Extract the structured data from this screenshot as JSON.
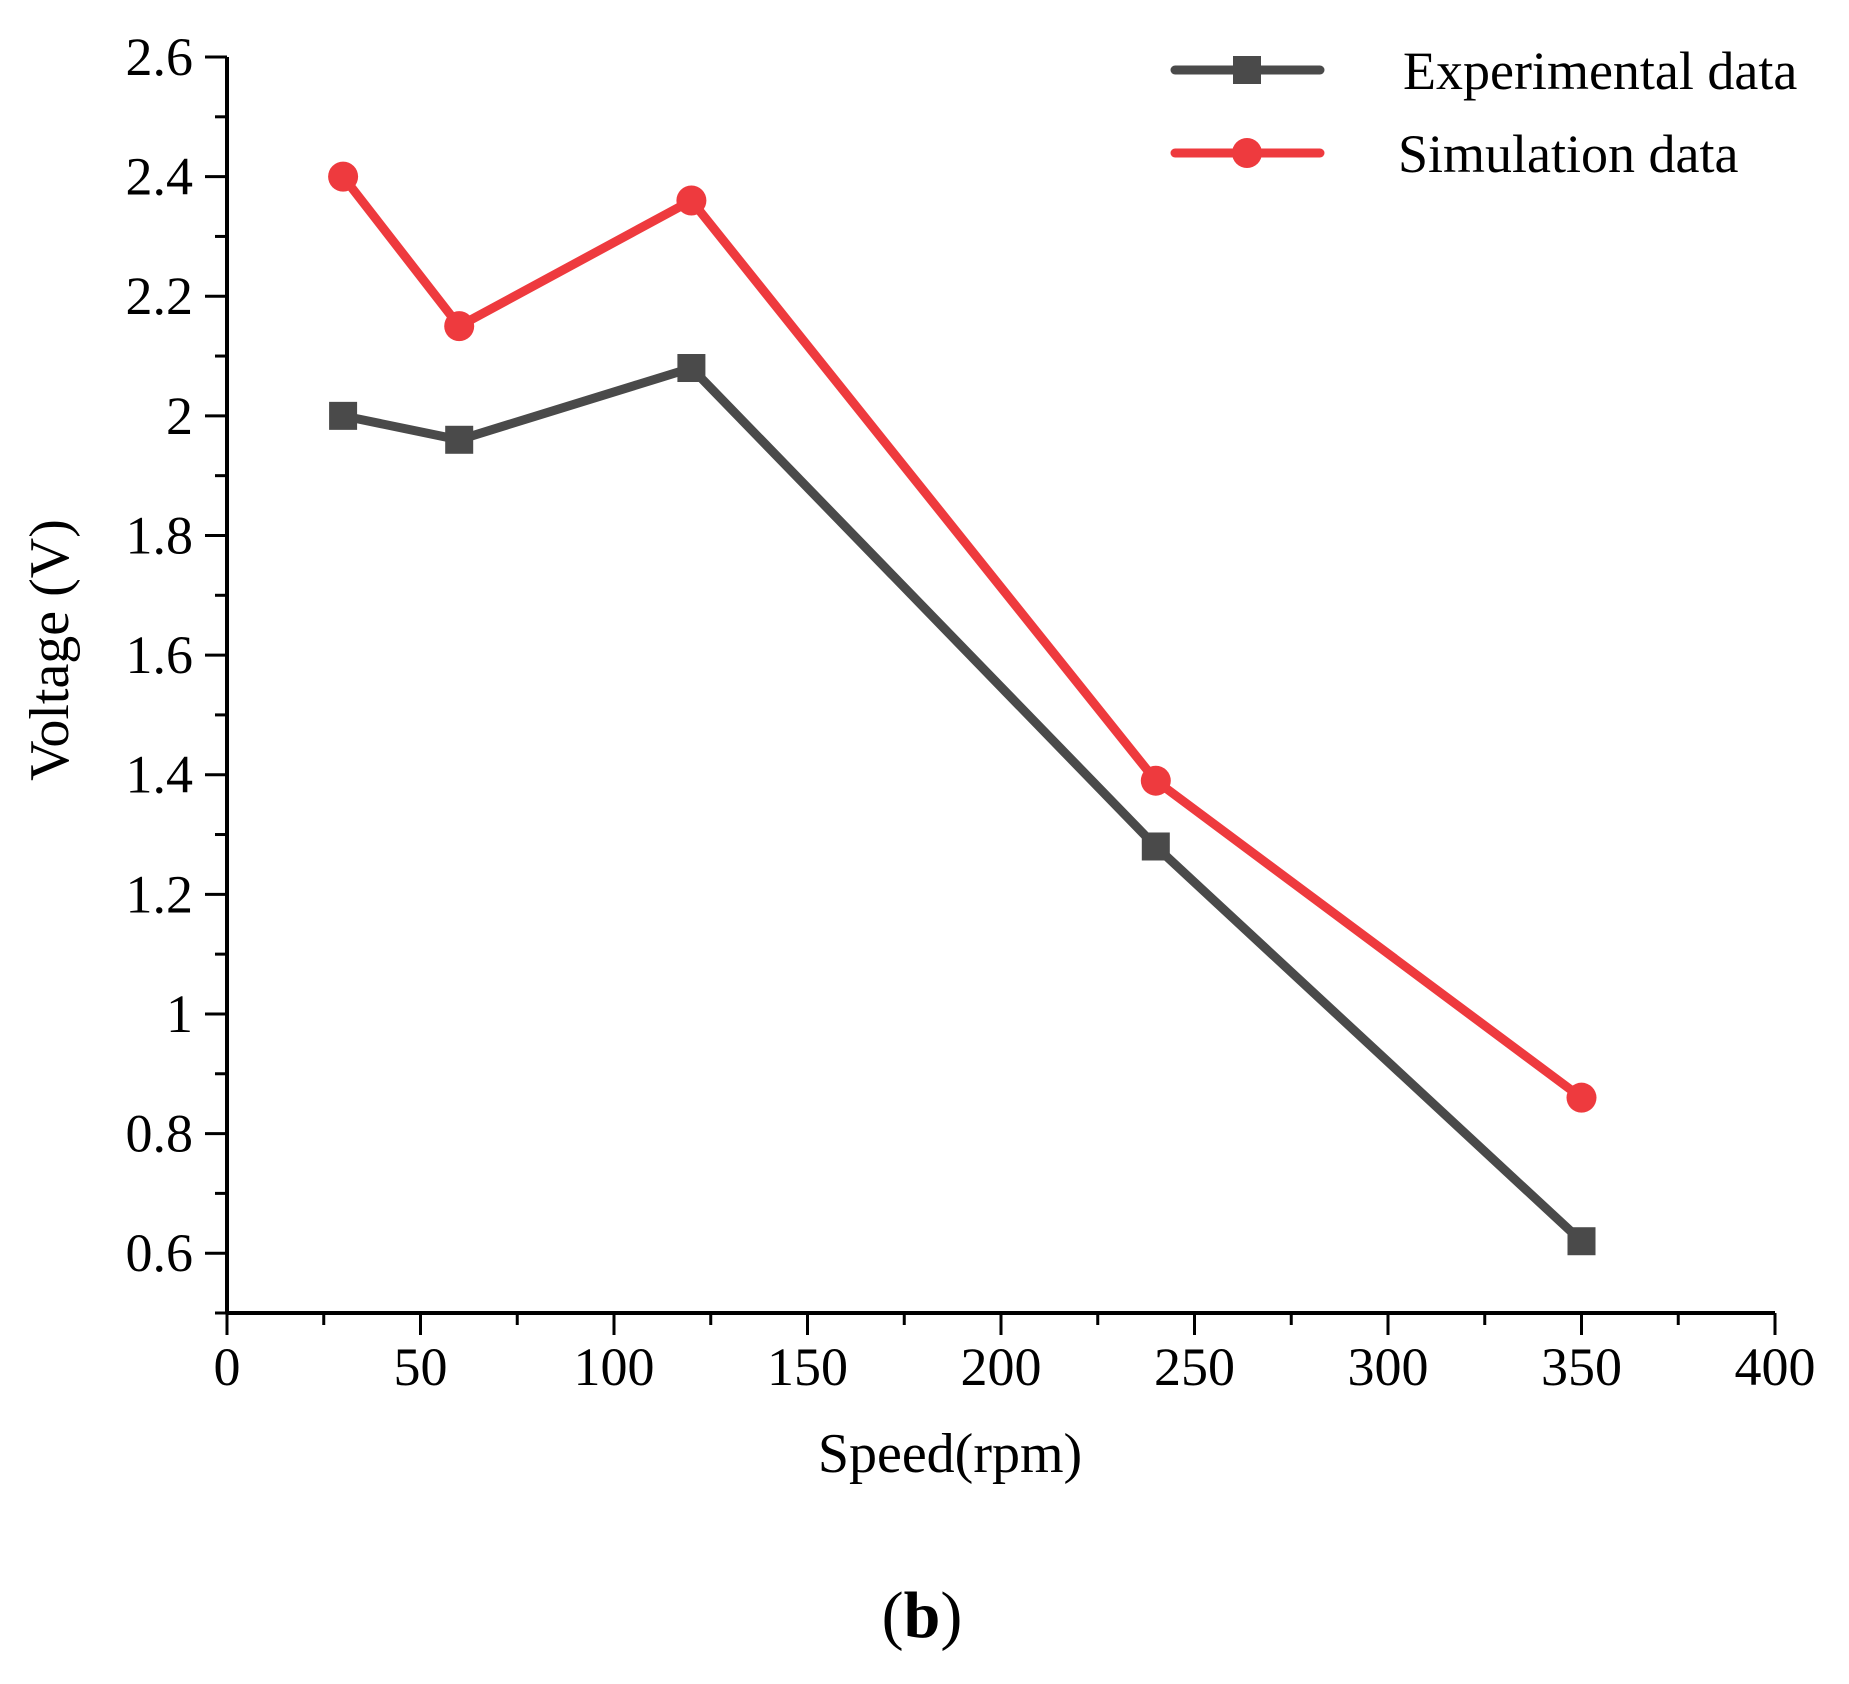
{
  "chart_data": {
    "type": "line",
    "title": "",
    "xlabel": "Speed(rpm)",
    "ylabel": "Voltage (V)",
    "xlim": [
      0,
      400
    ],
    "ylim": [
      0.5,
      2.6
    ],
    "x_ticks": [
      0,
      50,
      100,
      150,
      200,
      250,
      300,
      350,
      400
    ],
    "x_tick_labels": [
      "0",
      "50",
      "100",
      "150",
      "200",
      "250",
      "300",
      "350",
      "400"
    ],
    "y_ticks": [
      0.6,
      0.8,
      1.0,
      1.2,
      1.4,
      1.6,
      1.8,
      2.0,
      2.2,
      2.4,
      2.6
    ],
    "y_tick_labels": [
      "0.6",
      "0.8",
      "1",
      "1.2",
      "1.4",
      "1.6",
      "1.8",
      "2",
      "2.2",
      "2.4",
      "2.6"
    ],
    "grid": false,
    "legend_position": "top-right",
    "x": [
      30,
      60,
      120,
      240,
      350
    ],
    "series": [
      {
        "name": "Experimental data",
        "marker": "square",
        "color": "#4a4a4a",
        "values": [
          2.0,
          1.96,
          2.08,
          1.28,
          0.62
        ]
      },
      {
        "name": "Simulation data",
        "marker": "circle",
        "color": "#ee3a3e",
        "values": [
          2.4,
          2.15,
          2.36,
          1.39,
          0.86
        ]
      }
    ]
  },
  "panel_label": {
    "open": "(",
    "letter": "b",
    "close": ")"
  }
}
